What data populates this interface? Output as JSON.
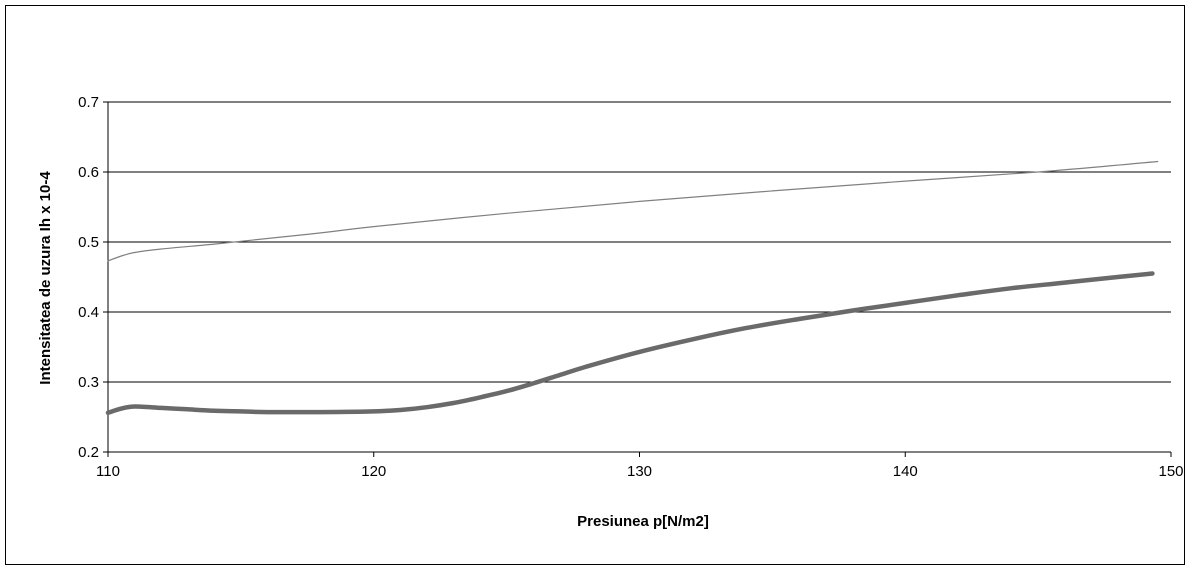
{
  "chart_data": {
    "type": "line",
    "title": "",
    "xlabel": "Presiunea p[N/m2]",
    "ylabel": "Intensitatea de uzura Ih x 10-4",
    "xlim": [
      110,
      150
    ],
    "ylim": [
      0.2,
      0.7
    ],
    "x_ticks": [
      110,
      120,
      130,
      140,
      150
    ],
    "y_ticks": [
      0.2,
      0.3,
      0.4,
      0.5,
      0.6,
      0.7
    ],
    "x_tick_labels": [
      "110",
      "120",
      "130",
      "140",
      "150"
    ],
    "y_tick_labels": [
      "0.2",
      "0.3",
      "0.4",
      "0.5",
      "0.6",
      "0.7"
    ],
    "grid": "horizontal",
    "legend": "none",
    "series": [
      {
        "color": "#808080",
        "line_width": 1.2,
        "x": [
          110,
          110.5,
          111,
          112,
          114,
          116,
          118,
          120,
          125,
          130,
          135,
          140,
          145,
          149.5
        ],
        "y": [
          0.473,
          0.48,
          0.485,
          0.49,
          0.497,
          0.505,
          0.513,
          0.522,
          0.541,
          0.558,
          0.573,
          0.587,
          0.6,
          0.615
        ]
      },
      {
        "color": "#6a6a6a",
        "line_width": 4.5,
        "x": [
          110,
          110.5,
          111,
          112,
          113,
          114,
          115,
          116,
          118,
          120,
          121,
          122,
          123,
          124,
          125,
          126,
          127,
          128,
          130,
          132,
          134,
          136,
          138,
          140,
          142,
          144,
          146,
          148,
          149.3
        ],
        "y": [
          0.256,
          0.262,
          0.265,
          0.263,
          0.261,
          0.259,
          0.258,
          0.257,
          0.257,
          0.258,
          0.26,
          0.264,
          0.27,
          0.278,
          0.287,
          0.298,
          0.31,
          0.322,
          0.343,
          0.361,
          0.377,
          0.39,
          0.402,
          0.413,
          0.424,
          0.434,
          0.442,
          0.45,
          0.455
        ]
      }
    ]
  }
}
